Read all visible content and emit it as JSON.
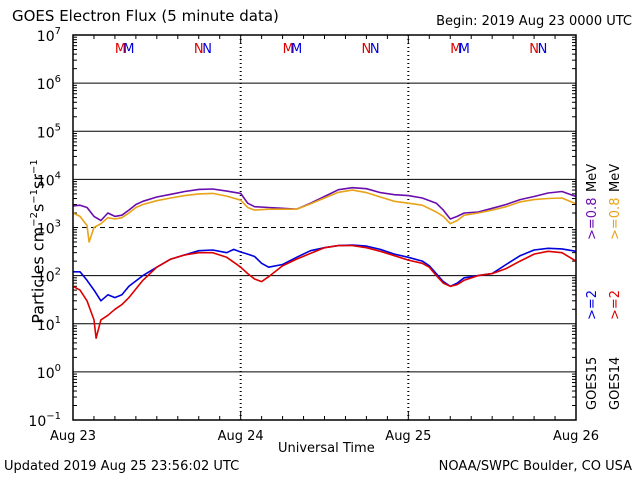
{
  "header": {
    "title": "GOES Electron Flux (5 minute data)",
    "begin": "Begin: 2019 Aug 23 0000 UTC"
  },
  "footer": {
    "updated": "Updated 2019 Aug 25 23:56:02 UTC",
    "credit": "NOAA/SWPC Boulder, CO USA"
  },
  "chart_data": {
    "type": "line",
    "title": "GOES Electron Flux (5 minute data)",
    "xlabel": "Universal Time",
    "ylabel": "Particles cm⁻²s⁻¹sr⁻¹",
    "yscale": "log",
    "ylim": [
      0.1,
      10000000
    ],
    "xlim": [
      0,
      72
    ],
    "x_unit": "hours since 2019 Aug 23 0000 UTC",
    "x_ticks": [
      {
        "x": 0,
        "label": "Aug 23"
      },
      {
        "x": 24,
        "label": "Aug 24"
      },
      {
        "x": 48,
        "label": "Aug 25"
      },
      {
        "x": 72,
        "label": "Aug 26"
      }
    ],
    "y_ticks": [
      {
        "exp": "7"
      },
      {
        "exp": "6"
      },
      {
        "exp": "5"
      },
      {
        "exp": "4"
      },
      {
        "exp": "3"
      },
      {
        "exp": "2"
      },
      {
        "exp": "1"
      },
      {
        "exp": "0"
      },
      {
        "exp": "−1"
      }
    ],
    "threshold": {
      "value": 1000,
      "style": "dashed"
    },
    "markers": [
      {
        "x": 6.8,
        "label": "M",
        "color": "#dd0000"
      },
      {
        "x": 8.0,
        "label": "M",
        "color": "#0000dd"
      },
      {
        "x": 18.0,
        "label": "N",
        "color": "#dd0000"
      },
      {
        "x": 19.2,
        "label": "N",
        "color": "#0000dd"
      },
      {
        "x": 30.8,
        "label": "M",
        "color": "#dd0000"
      },
      {
        "x": 32.0,
        "label": "M",
        "color": "#0000dd"
      },
      {
        "x": 42.0,
        "label": "N",
        "color": "#dd0000"
      },
      {
        "x": 43.2,
        "label": "N",
        "color": "#0000dd"
      },
      {
        "x": 54.8,
        "label": "M",
        "color": "#dd0000"
      },
      {
        "x": 56.0,
        "label": "M",
        "color": "#0000dd"
      },
      {
        "x": 66.0,
        "label": "N",
        "color": "#dd0000"
      },
      {
        "x": 67.2,
        "label": "N",
        "color": "#0000dd"
      }
    ],
    "series": [
      {
        "name": "GOES15 >=0.8 MeV",
        "color": "#6a0dad",
        "x": [
          0,
          1,
          2,
          3,
          4,
          5,
          6,
          7,
          8,
          9,
          10,
          12,
          14,
          16,
          18,
          20,
          22,
          24,
          25,
          26,
          28,
          30,
          32,
          34,
          36,
          38,
          40,
          42,
          44,
          46,
          48,
          50,
          52,
          53,
          54,
          55,
          56,
          58,
          60,
          62,
          64,
          66,
          68,
          70,
          72
        ],
        "y": [
          2800,
          2900,
          2600,
          1700,
          1400,
          2000,
          1700,
          1800,
          2300,
          3000,
          3500,
          4300,
          4900,
          5600,
          6200,
          6300,
          5700,
          5100,
          3200,
          2700,
          2600,
          2500,
          2400,
          3200,
          4400,
          6100,
          6700,
          6400,
          5300,
          4800,
          4600,
          4100,
          3200,
          2300,
          1500,
          1700,
          2000,
          2100,
          2500,
          3000,
          3800,
          4400,
          5200,
          5600,
          4400
        ]
      },
      {
        "name": "GOES14 >=0.8 MeV",
        "color": "#e8a317",
        "x": [
          0,
          1,
          2,
          2.3,
          3,
          4,
          5,
          6,
          7,
          8,
          9,
          10,
          12,
          14,
          16,
          18,
          20,
          22,
          24,
          25,
          26,
          28,
          30,
          32,
          34,
          36,
          38,
          40,
          42,
          44,
          46,
          48,
          50,
          52,
          53,
          54,
          55,
          56,
          58,
          60,
          62,
          64,
          66,
          68,
          70,
          72
        ],
        "y": [
          2000,
          1700,
          1100,
          500,
          1000,
          1200,
          1600,
          1500,
          1600,
          2000,
          2600,
          3000,
          3600,
          4100,
          4600,
          5000,
          5100,
          4500,
          3700,
          2600,
          2300,
          2400,
          2400,
          2400,
          3100,
          4100,
          5400,
          6000,
          5300,
          4300,
          3500,
          3200,
          2900,
          2100,
          1700,
          1200,
          1400,
          1800,
          2000,
          2300,
          2700,
          3400,
          3800,
          4000,
          4100,
          3100
        ]
      },
      {
        "name": "GOES15 >=2 MeV",
        "color": "#0000dd",
        "x": [
          0,
          1,
          2,
          3,
          4,
          5,
          6,
          7,
          8,
          10,
          12,
          14,
          16,
          18,
          20,
          22,
          23,
          24,
          25,
          26,
          27,
          28,
          30,
          32,
          34,
          36,
          38,
          40,
          42,
          44,
          46,
          48,
          50,
          51,
          52,
          53,
          54,
          55,
          56,
          58,
          60,
          62,
          64,
          66,
          68,
          70,
          72
        ],
        "y": [
          120,
          120,
          80,
          50,
          30,
          40,
          35,
          40,
          60,
          100,
          150,
          220,
          270,
          330,
          340,
          300,
          350,
          310,
          280,
          250,
          180,
          150,
          170,
          240,
          330,
          380,
          420,
          430,
          410,
          350,
          280,
          240,
          200,
          160,
          110,
          75,
          60,
          70,
          90,
          100,
          110,
          170,
          260,
          340,
          370,
          360,
          320
        ]
      },
      {
        "name": "GOES14 >=2 MeV",
        "color": "#dd0000",
        "x": [
          0,
          1,
          2,
          3,
          3.3,
          4,
          5,
          6,
          7,
          8,
          10,
          12,
          14,
          16,
          18,
          20,
          22,
          23,
          24,
          25,
          26,
          27,
          28,
          30,
          32,
          34,
          36,
          38,
          40,
          42,
          44,
          46,
          48,
          50,
          51,
          52,
          53,
          54,
          55,
          56,
          58,
          60,
          62,
          64,
          66,
          68,
          70,
          72
        ],
        "y": [
          60,
          50,
          30,
          12,
          5,
          12,
          15,
          20,
          25,
          35,
          80,
          150,
          220,
          270,
          300,
          300,
          240,
          190,
          150,
          110,
          85,
          75,
          95,
          160,
          220,
          290,
          380,
          420,
          420,
          380,
          320,
          260,
          210,
          180,
          150,
          100,
          70,
          60,
          65,
          80,
          100,
          110,
          140,
          200,
          280,
          320,
          300,
          200
        ]
      }
    ],
    "legend": {
      "placement": "right, vertical",
      "goes15": {
        "satellite": "GOES15",
        "low": ">=2",
        "high": ">=0.8",
        "unit": "MeV",
        "low_color": "#0000dd",
        "high_color": "#6a0dad"
      },
      "goes14": {
        "satellite": "GOES14",
        "low": ">=2",
        "high": ">=0.8",
        "unit": "MeV",
        "low_color": "#dd0000",
        "high_color": "#e8a317"
      }
    }
  }
}
